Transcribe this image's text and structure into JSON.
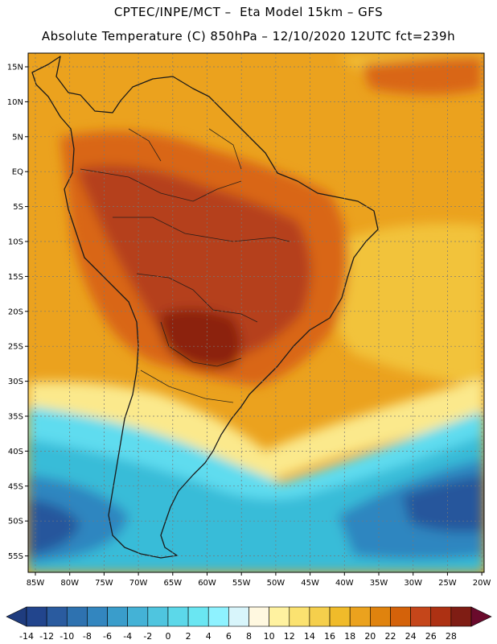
{
  "header": {
    "line1": "CPTEC/INPE/MCT –  Eta Model 15km – GFS",
    "line2": "Absolute Temperature (C) 850hPa – 12/10/2020 12UTC fct=239h"
  },
  "map": {
    "lat_labels": [
      "15N",
      "10N",
      "5N",
      "EQ",
      "5S",
      "10S",
      "15S",
      "20S",
      "25S",
      "30S",
      "35S",
      "40S",
      "45S",
      "50S",
      "55S"
    ],
    "lon_labels": [
      "85W",
      "80W",
      "75W",
      "70W",
      "65W",
      "60W",
      "55W",
      "50W",
      "45W",
      "40W",
      "35W",
      "30W",
      "25W",
      "20W"
    ],
    "colors": {
      "hot_core": "#8c2410",
      "hot": "#b5401a",
      "warm": "#d96612",
      "base": "#eba21e",
      "mild": "#f2c33a",
      "pale": "#fbe98c",
      "cold_light": "#5fdcef",
      "cold": "#39bcd8",
      "cold_deep": "#2f86c0",
      "cold_core": "#25579c"
    }
  },
  "colorbar": {
    "labels": [
      "-14",
      "-12",
      "-10",
      "-8",
      "-6",
      "-4",
      "-2",
      "0",
      "2",
      "4",
      "6",
      "8",
      "10",
      "12",
      "14",
      "16",
      "18",
      "20",
      "22",
      "24",
      "26",
      "28"
    ],
    "colors": [
      "#22458d",
      "#2a5b9f",
      "#2e72b0",
      "#3386bf",
      "#3a9dcb",
      "#44b2d6",
      "#4fc5df",
      "#5cd8e9",
      "#6ae6f2",
      "#8ef2ff",
      "#d8f5fb",
      "#fff8e0",
      "#fff2a0",
      "#fbe270",
      "#f5cf4c",
      "#f0bb2a",
      "#eba21e",
      "#e0830e",
      "#d4620a",
      "#c5461a",
      "#ad3113",
      "#7f1d14"
    ],
    "min_arrow_color": "#1f3c7e",
    "max_arrow_color": "#6a0a2c"
  }
}
